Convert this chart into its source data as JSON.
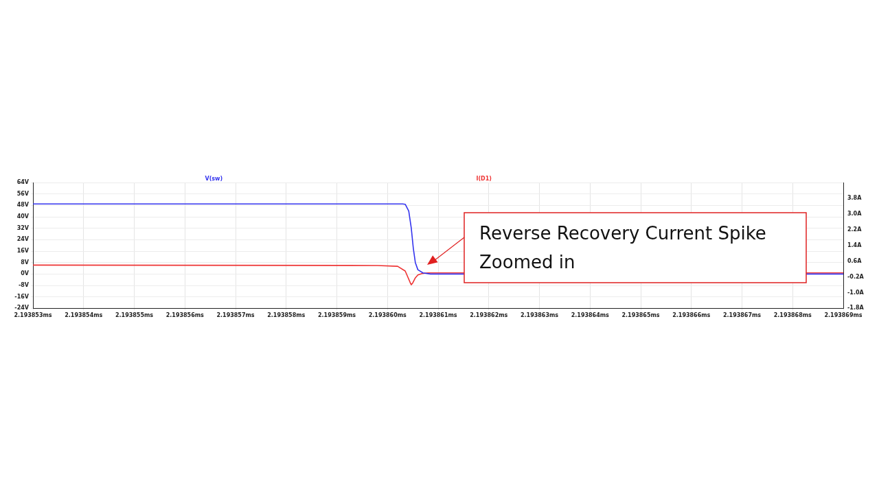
{
  "chart_data": {
    "type": "line",
    "legend": "top",
    "grid": true,
    "marker": "none",
    "line_style": "solid",
    "annotations": [
      "Reverse Recovery Current Spike Zoomed in"
    ],
    "xlim": [
      2.193853,
      2.193869
    ],
    "xticks": [
      {
        "value": 2.193853,
        "label": "2.193853ms"
      },
      {
        "value": 2.193854,
        "label": "2.193854ms"
      },
      {
        "value": 2.193855,
        "label": "2.193855ms"
      },
      {
        "value": 2.193856,
        "label": "2.193856ms"
      },
      {
        "value": 2.193857,
        "label": "2.193857ms"
      },
      {
        "value": 2.193858,
        "label": "2.193858ms"
      },
      {
        "value": 2.193859,
        "label": "2.193859ms"
      },
      {
        "value": 2.19386,
        "label": "2.193860ms"
      },
      {
        "value": 2.193861,
        "label": "2.193861ms"
      },
      {
        "value": 2.193862,
        "label": "2.193862ms"
      },
      {
        "value": 2.193863,
        "label": "2.193863ms"
      },
      {
        "value": 2.193864,
        "label": "2.193864ms"
      },
      {
        "value": 2.193865,
        "label": "2.193865ms"
      },
      {
        "value": 2.193866,
        "label": "2.193866ms"
      },
      {
        "value": 2.193867,
        "label": "2.193867ms"
      },
      {
        "value": 2.193868,
        "label": "2.193868ms"
      },
      {
        "value": 2.193869,
        "label": "2.193869ms"
      }
    ],
    "ylim": [
      -24,
      64
    ],
    "yticks": [
      {
        "value": -24,
        "label": "-24V"
      },
      {
        "value": -16,
        "label": "-16V"
      },
      {
        "value": -8,
        "label": "-8V"
      },
      {
        "value": 0,
        "label": "0V"
      },
      {
        "value": 8,
        "label": "8V"
      },
      {
        "value": 16,
        "label": "16V"
      },
      {
        "value": 24,
        "label": "24V"
      },
      {
        "value": 32,
        "label": "32V"
      },
      {
        "value": 40,
        "label": "40V"
      },
      {
        "value": 48,
        "label": "48V"
      },
      {
        "value": 56,
        "label": "56V"
      },
      {
        "value": 64,
        "label": "64V"
      }
    ],
    "y2lim": [
      -1.8,
      4.6
    ],
    "y2ticks": [
      {
        "value": -1.8,
        "label": "-1.8A"
      },
      {
        "value": -1,
        "label": "-1.0A"
      },
      {
        "value": -0.2,
        "label": "-0.2A"
      },
      {
        "value": 0.6,
        "label": "0.6A"
      },
      {
        "value": 1.4,
        "label": "1.4A"
      },
      {
        "value": 2.2,
        "label": "2.2A"
      },
      {
        "value": 3,
        "label": "3.0A"
      },
      {
        "value": 3.8,
        "label": "3.8A"
      }
    ],
    "series": [
      {
        "name": "V(sw)",
        "color": "#3333ee",
        "x": [
          2.193853,
          2.1938603,
          2.19386035,
          2.19386042,
          2.19386047,
          2.19386051,
          2.19386055,
          2.1938606,
          2.1938607,
          2.19386085,
          2.193869
        ],
        "values": [
          49,
          49,
          48.8,
          44,
          32,
          18,
          8,
          3,
          0.8,
          0,
          0
        ]
      },
      {
        "name": "I(D1)",
        "color": "#ee3333",
        "axis": "y2",
        "x": [
          2.193853,
          2.1938598,
          2.1938602,
          2.19386035,
          2.1938604,
          2.19386045,
          2.19386047,
          2.1938605,
          2.19386055,
          2.1938606,
          2.19386068,
          2.1938608,
          2.193869
        ],
        "values": [
          0.4,
          0.38,
          0.34,
          0.1,
          -0.2,
          -0.5,
          -0.6,
          -0.5,
          -0.25,
          -0.1,
          -0.03,
          0,
          0
        ]
      }
    ]
  }
}
